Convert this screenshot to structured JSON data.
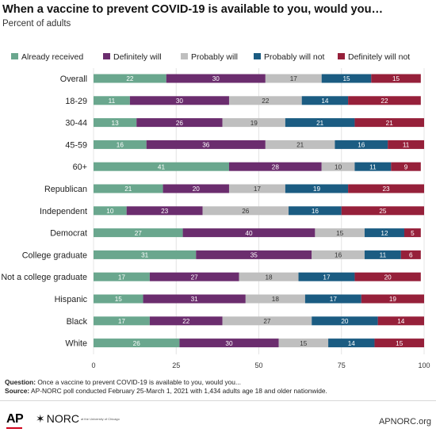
{
  "title": "When a vaccine to prevent COVID-19 is available to you, would you…",
  "subtitle": "Percent of adults",
  "chart_data": {
    "type": "bar",
    "orientation": "horizontal",
    "stacked": true,
    "categories": [
      "Overall",
      "18-29",
      "30-44",
      "45-59",
      "60+",
      "Republican",
      "Independent",
      "Democrat",
      "College graduate",
      "Not a college graduate",
      "Hispanic",
      "Black",
      "White"
    ],
    "series": [
      {
        "name": "Already received",
        "color": "#6aa78e",
        "values": [
          22,
          11,
          13,
          16,
          41,
          21,
          10,
          27,
          31,
          17,
          15,
          17,
          26
        ]
      },
      {
        "name": "Definitely will",
        "color": "#6b2d6e",
        "values": [
          30,
          30,
          26,
          36,
          28,
          20,
          23,
          40,
          35,
          27,
          31,
          22,
          30
        ]
      },
      {
        "name": "Probably will",
        "color": "#bfbfbf",
        "values": [
          17,
          22,
          19,
          21,
          10,
          17,
          26,
          15,
          16,
          18,
          18,
          27,
          15
        ]
      },
      {
        "name": "Probably will not",
        "color": "#1b5c82",
        "values": [
          15,
          14,
          21,
          16,
          11,
          19,
          16,
          12,
          11,
          17,
          17,
          20,
          14
        ]
      },
      {
        "name": "Definitely will not",
        "color": "#96203a",
        "values": [
          15,
          22,
          21,
          11,
          9,
          23,
          25,
          5,
          6,
          20,
          19,
          14,
          15
        ]
      }
    ],
    "xlim": [
      0,
      100
    ],
    "xticks": [
      "0",
      "25",
      "50",
      "75",
      "100"
    ],
    "grid": true,
    "legend": "top"
  },
  "footnote": {
    "question_label": "Question:",
    "question_text": " Once a vaccine to prevent COVID-19 is available to you, would you...",
    "source_label": "Source:",
    "source_text": " AP-NORC poll conducted February 25-March 1, 2021 with 1,434 adults age 18 and older nationwide."
  },
  "footer": {
    "ap": "AP",
    "norc": "NORC",
    "norc_small": "at the University of Chicago",
    "site": "APNORC.org"
  }
}
